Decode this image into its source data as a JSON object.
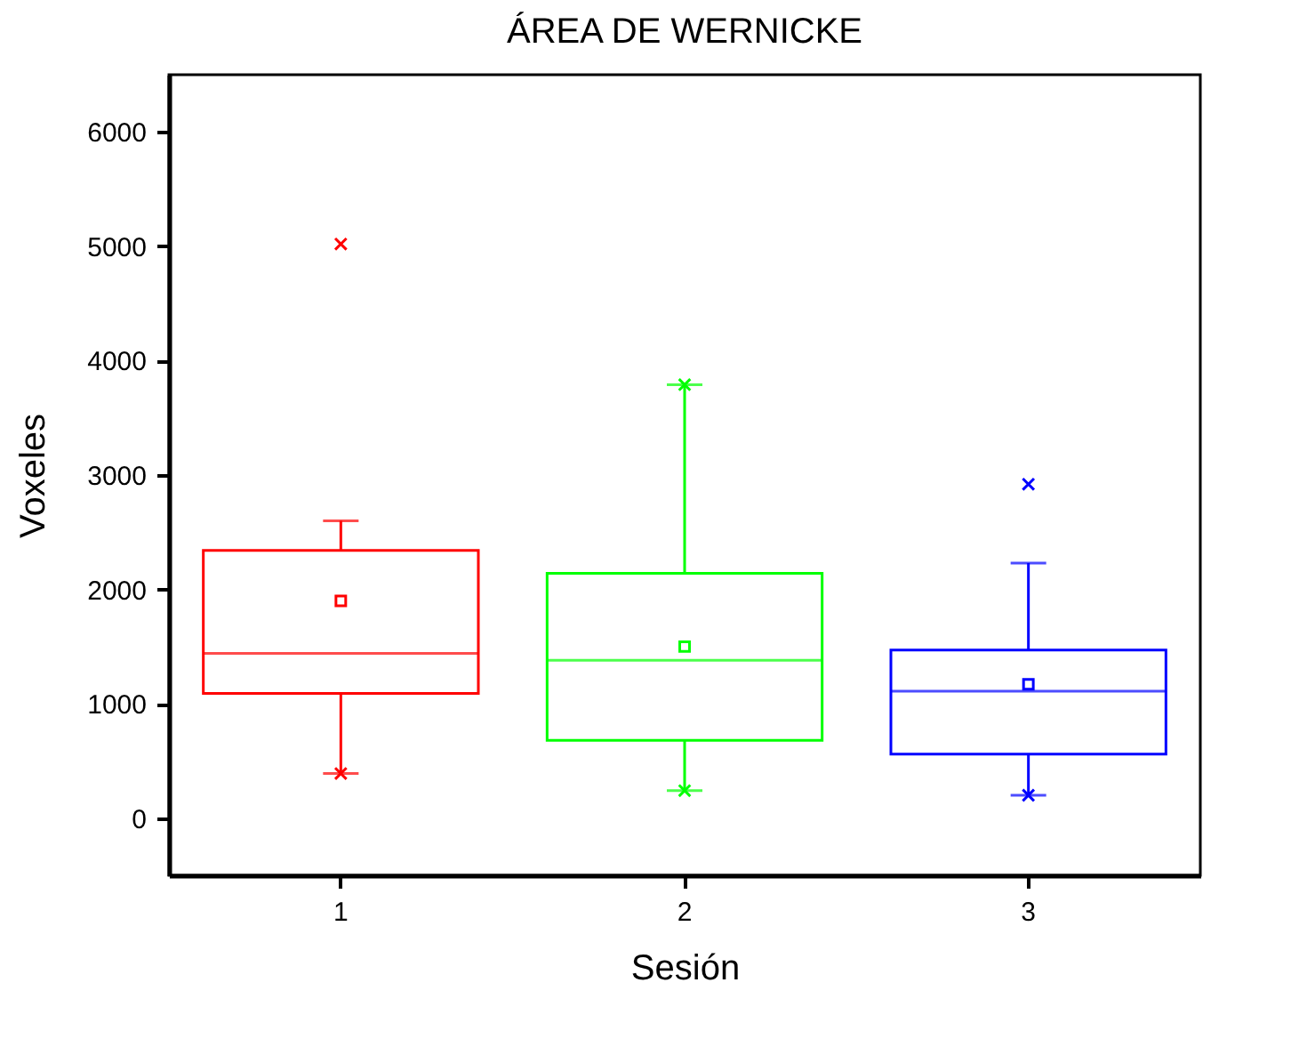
{
  "chart_data": {
    "type": "box",
    "title": "ÁREA DE WERNICKE",
    "xlabel": "Sesión",
    "ylabel": "Voxeles",
    "categories": [
      "1",
      "2",
      "3"
    ],
    "boxes": [
      {
        "low": 390,
        "q1": 1090,
        "median": 1440,
        "q3": 2340,
        "high": 2600,
        "mean": 1900,
        "outliers": [
          390,
          5020
        ]
      },
      {
        "low": 240,
        "q1": 680,
        "median": 1380,
        "q3": 2140,
        "high": 3790,
        "mean": 1500,
        "outliers": [
          240,
          3790
        ]
      },
      {
        "low": 200,
        "q1": 560,
        "median": 1110,
        "q3": 1470,
        "high": 2230,
        "mean": 1170,
        "outliers": [
          200,
          2920
        ]
      }
    ],
    "colors": [
      "#ff0000",
      "#00ff00",
      "#0000ff"
    ],
    "ylim": [
      -500,
      6500
    ],
    "yticks": [
      0,
      1000,
      2000,
      3000,
      4000,
      5000,
      6000
    ],
    "marker": "cross",
    "grid": false
  }
}
